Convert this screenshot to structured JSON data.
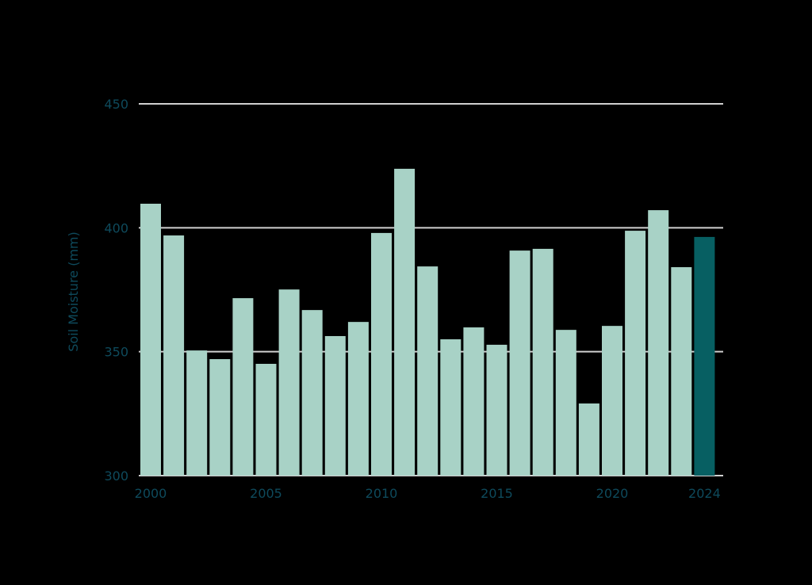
{
  "chart_data": {
    "type": "bar",
    "title": "",
    "xlabel": "",
    "ylabel": "Soil Moisture (mm)",
    "ylim": [
      300,
      450
    ],
    "yticks": [
      300,
      350,
      400,
      450
    ],
    "xtick_labels": [
      "2000",
      "2005",
      "2010",
      "2015",
      "2020",
      "2024"
    ],
    "grid": true,
    "legend": null,
    "categories": [
      "2000",
      "2001",
      "2002",
      "2003",
      "2004",
      "2005",
      "2006",
      "2007",
      "2008",
      "2009",
      "2010",
      "2011",
      "2012",
      "2013",
      "2014",
      "2015",
      "2016",
      "2017",
      "2018",
      "2019",
      "2020",
      "2021",
      "2022",
      "2023",
      "2024"
    ],
    "values": [
      409.7,
      396.9,
      350.5,
      347.0,
      371.6,
      345.1,
      375.1,
      366.8,
      356.3,
      362.0,
      397.9,
      423.8,
      384.4,
      355.0,
      359.8,
      352.8,
      390.8,
      391.5,
      358.8,
      329.1,
      360.4,
      398.8,
      407.1,
      384.1,
      396.3
    ],
    "highlight": {
      "category": "2024"
    },
    "colors": {
      "bar": "#a8d2c6",
      "highlight_bar": "#075f62",
      "text": "#0e4a5c",
      "grid": "#d0d0d0",
      "background": "#000000"
    }
  }
}
